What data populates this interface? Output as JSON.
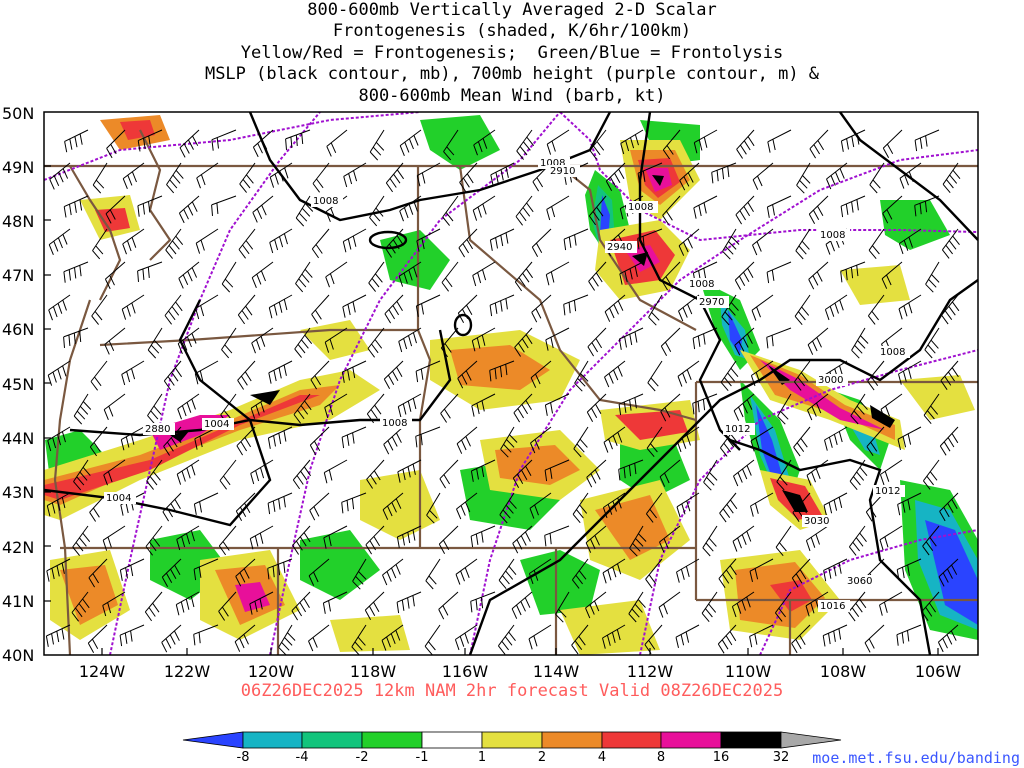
{
  "title_lines": [
    "800-600mb Vertically Averaged 2-D Scalar",
    "Frontogenesis (shaded, K/6hr/100km)",
    "Yellow/Red = Frontogenesis;  Green/Blue = Frontolysis",
    "MSLP (black contour, mb), 700mb height (purple contour, m) &",
    "800-600mb Mean Wind (barb, kt)"
  ],
  "valid_time": "06Z26DEC2025 12km NAM 2hr forecast Valid 08Z26DEC2025",
  "credit": "moe.met.fsu.edu/banding",
  "lat_labels": [
    "50N",
    "49N",
    "48N",
    "47N",
    "46N",
    "45N",
    "44N",
    "43N",
    "42N",
    "41N",
    "40N"
  ],
  "lon_labels": [
    "124W",
    "122W",
    "120W",
    "118W",
    "116W",
    "114W",
    "112W",
    "110W",
    "108W",
    "106W"
  ],
  "contour_labels": {
    "mslp": [
      "1008",
      "1008",
      "1008",
      "1008",
      "1008",
      "1008",
      "1004",
      "1004",
      "1012",
      "1012",
      "1016"
    ],
    "height": [
      "2910",
      "2940",
      "2970",
      "3000",
      "2880",
      "3030",
      "3060"
    ]
  },
  "colorbar": {
    "ticks": [
      "-8",
      "-4",
      "-2",
      "-1",
      "1",
      "2",
      "4",
      "8",
      "16",
      "32"
    ],
    "colors": [
      "#2a44ff",
      "#16b4c4",
      "#12c47c",
      "#22d02a",
      "#ffffff",
      "#e4e040",
      "#ec8a28",
      "#ee3838",
      "#e8109a",
      "#000000",
      "#a8a8a8"
    ]
  },
  "colors": {
    "mslp": "#000000",
    "height": "#a010d0",
    "borders": "#7a5840"
  }
}
